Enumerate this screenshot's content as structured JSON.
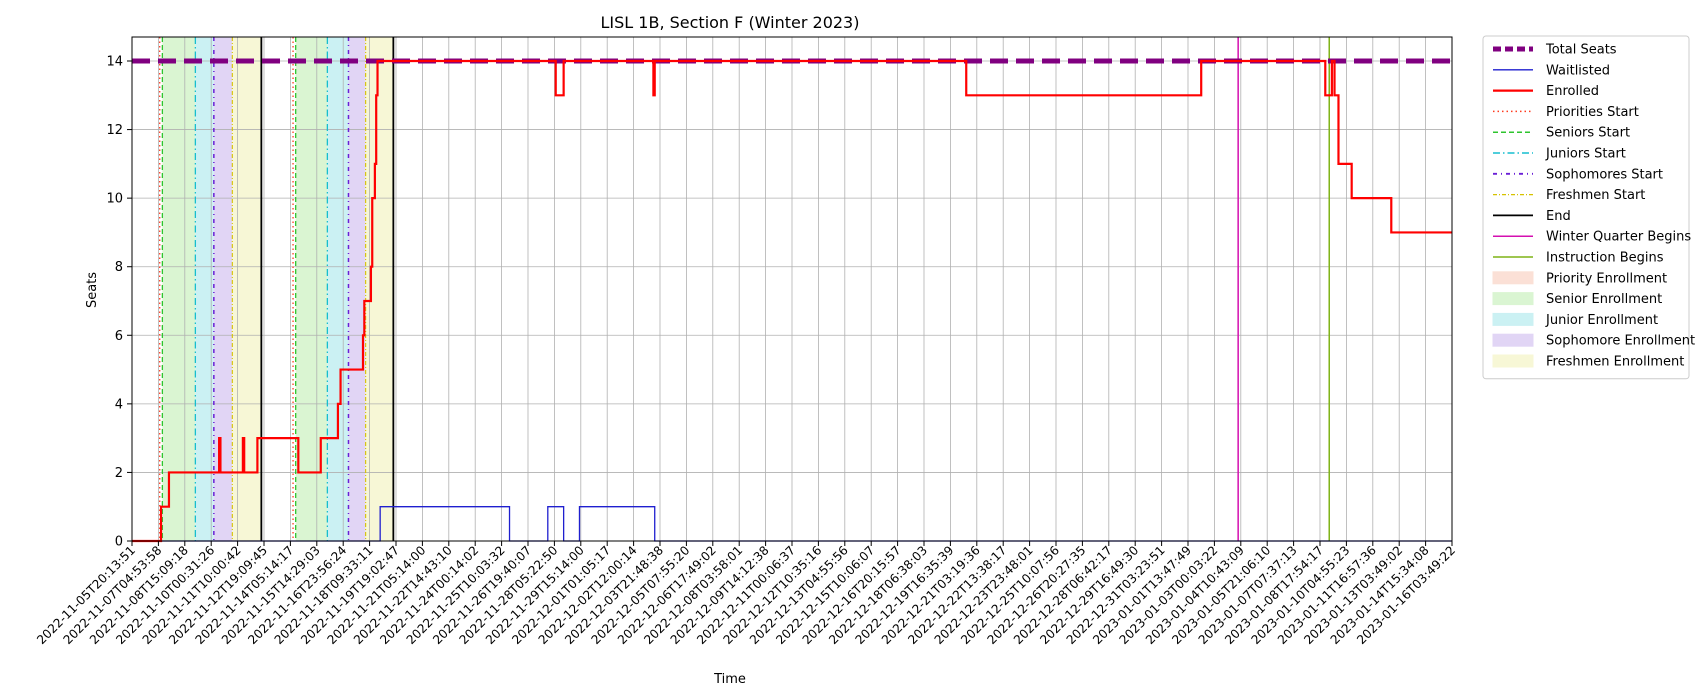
{
  "chart_data": {
    "type": "line",
    "title": "LISL 1B, Section F (Winter 2023)",
    "xlabel": "Time",
    "ylabel": "Seats",
    "ylim": [
      0,
      14.7
    ],
    "y_ticks": [
      0,
      2,
      4,
      6,
      8,
      10,
      12,
      14
    ],
    "grid": true,
    "legend_position": "outside-right",
    "x_tick_labels": [
      "2022-11-05T20:13:51",
      "2022-11-07T04:53:58",
      "2022-11-08T15:09:18",
      "2022-11-10T00:31:26",
      "2022-11-11T10:00:42",
      "2022-11-12T19:09:45",
      "2022-11-14T05:14:17",
      "2022-11-15T14:29:03",
      "2022-11-16T23:56:24",
      "2022-11-18T09:33:11",
      "2022-11-19T19:02:47",
      "2022-11-21T05:14:00",
      "2022-11-22T14:43:10",
      "2022-11-24T00:14:02",
      "2022-11-25T10:03:32",
      "2022-11-26T19:40:07",
      "2022-11-28T05:22:50",
      "2022-11-29T15:14:00",
      "2022-12-01T01:05:17",
      "2022-12-02T12:00:14",
      "2022-12-03T21:48:38",
      "2022-12-05T07:55:20",
      "2022-12-06T17:49:02",
      "2022-12-08T03:58:01",
      "2022-12-09T14:12:38",
      "2022-12-11T00:06:37",
      "2022-12-12T10:35:16",
      "2022-12-13T04:55:56",
      "2022-12-15T10:06:07",
      "2022-12-16T20:15:57",
      "2022-12-18T06:38:03",
      "2022-12-19T16:35:39",
      "2022-12-21T03:19:36",
      "2022-12-22T13:38:17",
      "2022-12-23T23:48:01",
      "2022-12-25T10:07:56",
      "2022-12-26T20:27:35",
      "2022-12-28T06:42:17",
      "2022-12-29T16:49:30",
      "2022-12-31T03:23:51",
      "2023-01-01T13:47:49",
      "2023-01-03T00:03:22",
      "2023-01-04T10:43:09",
      "2023-01-05T21:06:10",
      "2023-01-07T07:37:13",
      "2023-01-08T17:54:17",
      "2023-01-10T04:55:23",
      "2023-01-11T16:57:36",
      "2023-01-13T03:49:02",
      "2023-01-14T15:34:08",
      "2023-01-16T03:49:22"
    ],
    "x_range": [
      0,
      50
    ],
    "phases": [
      {
        "name": "Senior Enrollment",
        "start": 1.15,
        "end": 2.4,
        "color": "#daf5d2"
      },
      {
        "name": "Junior Enrollment",
        "start": 2.4,
        "end": 3.1,
        "color": "#cbf1f3"
      },
      {
        "name": "Sophomore Enrollment",
        "start": 3.1,
        "end": 3.8,
        "color": "#e1d5f5"
      },
      {
        "name": "Freshmen Enrollment",
        "start": 3.8,
        "end": 4.9,
        "color": "#f7f7d6"
      },
      {
        "name": "Senior Enrollment",
        "start": 6.2,
        "end": 7.4,
        "color": "#daf5d2"
      },
      {
        "name": "Junior Enrollment",
        "start": 7.4,
        "end": 8.2,
        "color": "#cbf1f3"
      },
      {
        "name": "Sophomore Enrollment",
        "start": 8.2,
        "end": 8.85,
        "color": "#e1d5f5"
      },
      {
        "name": "Freshmen Enrollment",
        "start": 8.85,
        "end": 9.9,
        "color": "#f7f7d6"
      }
    ],
    "vlines": [
      {
        "name": "Priorities Start",
        "x": 1.05,
        "color": "#ff3b1f",
        "dash": "1.5,3",
        "width": 1.3
      },
      {
        "name": "Priorities Start",
        "x": 6.1,
        "color": "#ff3b1f",
        "dash": "1.5,3",
        "width": 1.3
      },
      {
        "name": "Seniors Start",
        "x": 1.15,
        "color": "#2ec42e",
        "dash": "5,3",
        "width": 1.3
      },
      {
        "name": "Seniors Start",
        "x": 6.2,
        "color": "#2ec42e",
        "dash": "5,3",
        "width": 1.3
      },
      {
        "name": "Juniors Start",
        "x": 2.4,
        "color": "#17becf",
        "dash": "7,3,1.5,3",
        "width": 1.3
      },
      {
        "name": "Juniors Start",
        "x": 7.4,
        "color": "#17becf",
        "dash": "7,3,1.5,3",
        "width": 1.3
      },
      {
        "name": "Sophomores Start",
        "x": 3.1,
        "color": "#6a1fd6",
        "dash": "4,4,1,4",
        "width": 1.5
      },
      {
        "name": "Sophomores Start",
        "x": 8.2,
        "color": "#6a1fd6",
        "dash": "4,4,1,4",
        "width": 1.5
      },
      {
        "name": "Freshmen Start",
        "x": 3.8,
        "color": "#d6c200",
        "dash": "4,2,1,2",
        "width": 1.1
      },
      {
        "name": "Freshmen Start",
        "x": 8.85,
        "color": "#d6c200",
        "dash": "4,2,1,2",
        "width": 1.1
      },
      {
        "name": "End",
        "x": 4.9,
        "color": "#000000",
        "dash": "",
        "width": 1.8
      },
      {
        "name": "End",
        "x": 9.9,
        "color": "#000000",
        "dash": "",
        "width": 1.8
      },
      {
        "name": "Winter Quarter Begins",
        "x": 41.9,
        "color": "#d40fb0",
        "dash": "",
        "width": 1.5
      },
      {
        "name": "Instruction Begins",
        "x": 45.35,
        "color": "#7fb317",
        "dash": "",
        "width": 1.5
      }
    ],
    "series": [
      {
        "name": "Total Seats",
        "color": "#800080",
        "style": "dashed",
        "points": [
          [
            0,
            14
          ],
          [
            50,
            14
          ]
        ]
      },
      {
        "name": "Waitlisted",
        "color": "#1f1fcf",
        "style": "solid",
        "points": [
          [
            0,
            0
          ],
          [
            9.4,
            0
          ],
          [
            9.4,
            1
          ],
          [
            14.3,
            1
          ],
          [
            14.3,
            0
          ],
          [
            15.75,
            0
          ],
          [
            15.75,
            1
          ],
          [
            16.35,
            1
          ],
          [
            16.35,
            0
          ],
          [
            16.95,
            0
          ],
          [
            16.95,
            1
          ],
          [
            19.8,
            1
          ],
          [
            19.8,
            0
          ],
          [
            50,
            0
          ]
        ]
      },
      {
        "name": "Enrolled",
        "color": "#ff0000",
        "style": "solid",
        "points": [
          [
            0,
            0
          ],
          [
            1.1,
            0
          ],
          [
            1.1,
            1
          ],
          [
            1.4,
            1
          ],
          [
            1.4,
            2
          ],
          [
            3.3,
            2
          ],
          [
            3.3,
            3
          ],
          [
            3.35,
            3
          ],
          [
            3.35,
            2
          ],
          [
            4.2,
            2
          ],
          [
            4.2,
            3
          ],
          [
            4.25,
            3
          ],
          [
            4.25,
            2
          ],
          [
            4.75,
            2
          ],
          [
            4.75,
            3
          ],
          [
            6.3,
            3
          ],
          [
            6.3,
            2
          ],
          [
            7.15,
            2
          ],
          [
            7.15,
            3
          ],
          [
            7.8,
            3
          ],
          [
            7.8,
            4
          ],
          [
            7.9,
            4
          ],
          [
            7.9,
            5
          ],
          [
            8.75,
            5
          ],
          [
            8.75,
            6
          ],
          [
            8.8,
            6
          ],
          [
            8.8,
            7
          ],
          [
            9.05,
            7
          ],
          [
            9.05,
            8
          ],
          [
            9.1,
            8
          ],
          [
            9.1,
            10
          ],
          [
            9.2,
            10
          ],
          [
            9.2,
            11
          ],
          [
            9.25,
            11
          ],
          [
            9.25,
            13
          ],
          [
            9.3,
            13
          ],
          [
            9.3,
            14
          ],
          [
            16.05,
            14
          ],
          [
            16.05,
            13
          ],
          [
            16.35,
            13
          ],
          [
            16.35,
            14
          ],
          [
            19.75,
            14
          ],
          [
            19.75,
            13
          ],
          [
            19.8,
            13
          ],
          [
            19.8,
            14
          ],
          [
            31.6,
            14
          ],
          [
            31.6,
            13
          ],
          [
            40.5,
            13
          ],
          [
            40.5,
            14
          ],
          [
            45.2,
            14
          ],
          [
            45.2,
            13
          ],
          [
            45.45,
            13
          ],
          [
            45.45,
            14
          ],
          [
            45.55,
            14
          ],
          [
            45.55,
            13
          ],
          [
            45.7,
            13
          ],
          [
            45.7,
            11
          ],
          [
            46.2,
            11
          ],
          [
            46.2,
            10
          ],
          [
            47.7,
            10
          ],
          [
            47.7,
            9
          ],
          [
            50,
            9
          ]
        ]
      }
    ],
    "legend": [
      {
        "label": "Total Seats",
        "kind": "line",
        "color": "#800080",
        "dash": "8,4",
        "width": 5
      },
      {
        "label": "Waitlisted",
        "kind": "line",
        "color": "#1f1fcf",
        "dash": "",
        "width": 1.3
      },
      {
        "label": "Enrolled",
        "kind": "line",
        "color": "#ff0000",
        "dash": "",
        "width": 2.2
      },
      {
        "label": "Priorities Start",
        "kind": "line",
        "color": "#ff3b1f",
        "dash": "1.5,3",
        "width": 1.5
      },
      {
        "label": "Seniors Start",
        "kind": "line",
        "color": "#2ec42e",
        "dash": "5,3",
        "width": 1.5
      },
      {
        "label": "Juniors Start",
        "kind": "line",
        "color": "#17becf",
        "dash": "7,3,1.5,3",
        "width": 1.5
      },
      {
        "label": "Sophomores Start",
        "kind": "line",
        "color": "#6a1fd6",
        "dash": "4,4,1,4",
        "width": 1.8
      },
      {
        "label": "Freshmen Start",
        "kind": "line",
        "color": "#d6c200",
        "dash": "4,2,1,2",
        "width": 1.3
      },
      {
        "label": "End",
        "kind": "line",
        "color": "#000000",
        "dash": "",
        "width": 1.8
      },
      {
        "label": "Winter Quarter Begins",
        "kind": "line",
        "color": "#d40fb0",
        "dash": "",
        "width": 1.5
      },
      {
        "label": "Instruction Begins",
        "kind": "line",
        "color": "#7fb317",
        "dash": "",
        "width": 1.5
      },
      {
        "label": "Priority Enrollment",
        "kind": "patch",
        "color": "#fbe0d6"
      },
      {
        "label": "Senior Enrollment",
        "kind": "patch",
        "color": "#daf5d2"
      },
      {
        "label": "Junior Enrollment",
        "kind": "patch",
        "color": "#cbf1f3"
      },
      {
        "label": "Sophomore Enrollment",
        "kind": "patch",
        "color": "#e1d5f5"
      },
      {
        "label": "Freshmen Enrollment",
        "kind": "patch",
        "color": "#f7f7d6"
      }
    ]
  }
}
